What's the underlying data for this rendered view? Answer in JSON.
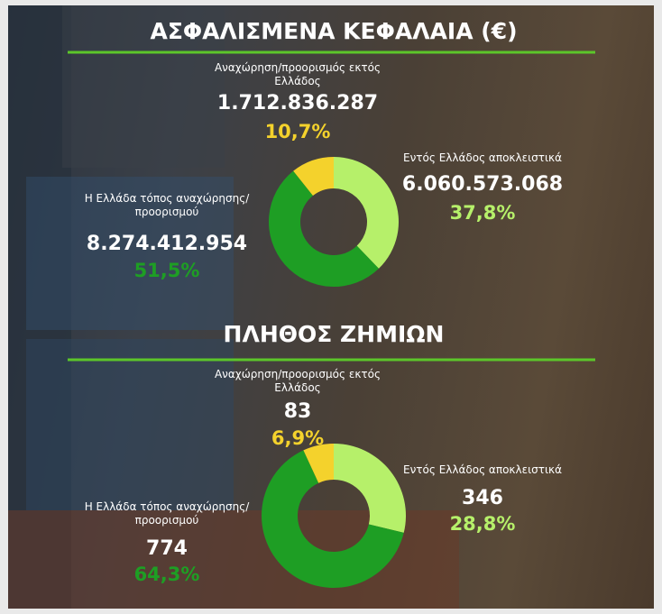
{
  "chart_data": [
    {
      "type": "pie",
      "title": "ΑΣΦΑΛΙΣΜΕΝΑ ΚΕΦΑΛΑΙΑ (€)",
      "categories": [
        "Εντός Ελλάδος αποκλειστικά",
        "Η Ελλάδα τόπος αναχώρησης/προορισμού",
        "Αναχώρηση/προορισμός εκτός Ελλάδος"
      ],
      "values": [
        37.8,
        51.5,
        10.7
      ],
      "value_labels": [
        "37,8%",
        "51,5%",
        "10,7%"
      ],
      "amounts": [
        6060573068,
        8274412954,
        1712836287
      ],
      "amount_labels": [
        "6.060.573.068",
        "8.274.412.954",
        "1.712.836.287"
      ],
      "colors": [
        "#b6f06a",
        "#1e9e24",
        "#f4d22c"
      ]
    },
    {
      "type": "pie",
      "title": "ΠΛΗΘΟΣ ΖΗΜΙΩΝ",
      "categories": [
        "Εντός Ελλάδος αποκλειστικά",
        "Η Ελλάδα τόπος αναχώρησης/προορισμού",
        "Αναχώρηση/προορισμός εκτός Ελλάδος"
      ],
      "values": [
        28.8,
        64.3,
        6.9
      ],
      "value_labels": [
        "28,8%",
        "64,3%",
        "6,9%"
      ],
      "amounts": [
        346,
        774,
        83
      ],
      "amount_labels": [
        "346",
        "774",
        "83"
      ],
      "colors": [
        "#b6f06a",
        "#1e9e24",
        "#f4d22c"
      ]
    }
  ]
}
